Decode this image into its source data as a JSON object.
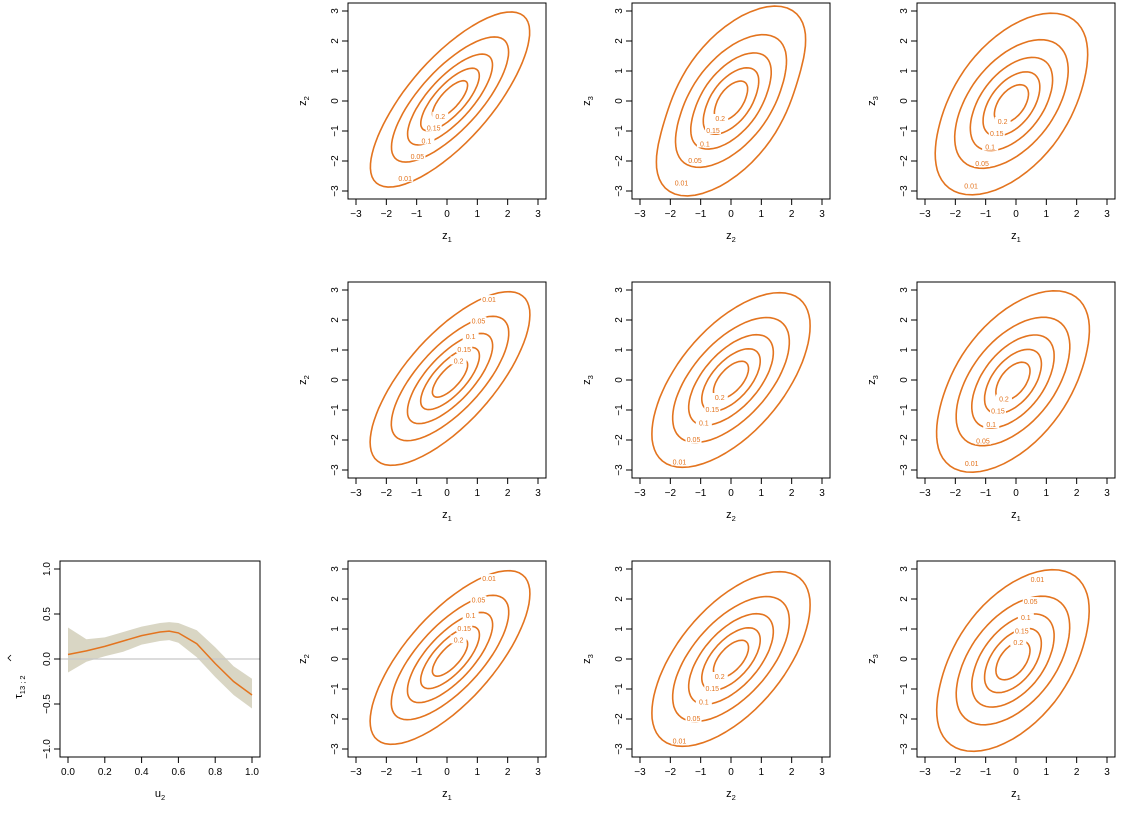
{
  "colors": {
    "contour": "#E3741F",
    "tau_line": "#E3741F",
    "tau_band": "#D9D6C4",
    "zero_line": "#C8C8C8"
  },
  "chart_data": [
    {
      "type": "line",
      "id": "tau",
      "xlabel": "u",
      "xlabel_sub": "2",
      "ylabel": "τ",
      "ylabel_sub": "13 ; 2",
      "xlim": [
        0,
        1
      ],
      "ylim": [
        -1,
        1
      ],
      "x_ticks": [
        "0.0",
        "0.2",
        "0.4",
        "0.6",
        "0.8",
        "1.0"
      ],
      "y_ticks": [
        "−1.0",
        "−0.5",
        "0.0",
        "0.5",
        "1.0"
      ],
      "x": [
        0,
        0.1,
        0.2,
        0.3,
        0.4,
        0.5,
        0.55,
        0.6,
        0.7,
        0.8,
        0.9,
        1.0
      ],
      "estimate": [
        0.05,
        0.09,
        0.14,
        0.2,
        0.26,
        0.3,
        0.31,
        0.29,
        0.17,
        -0.05,
        -0.25,
        -0.4
      ],
      "lower": [
        -0.15,
        -0.03,
        0.03,
        0.08,
        0.16,
        0.2,
        0.21,
        0.18,
        0.02,
        -0.2,
        -0.4,
        -0.55
      ],
      "upper": [
        0.35,
        0.22,
        0.24,
        0.3,
        0.36,
        0.4,
        0.41,
        0.4,
        0.32,
        0.13,
        -0.08,
        -0.22
      ]
    },
    {
      "type": "contour",
      "id": "r1c1",
      "xlabel": "z",
      "xlabel_sub": "1",
      "ylabel": "z",
      "ylabel_sub": "2",
      "xlim": [
        -3,
        3
      ],
      "ylim": [
        -3,
        3
      ],
      "ticks": [
        "−3",
        "−2",
        "−1",
        "0",
        "1",
        "2",
        "3"
      ],
      "rho": 0.75,
      "cx": 0.1,
      "cy": 0.05,
      "skew": 0.06,
      "label_angle": -2.5,
      "levels": [
        0.01,
        0.05,
        0.1,
        0.15,
        0.2
      ]
    },
    {
      "type": "contour",
      "id": "r1c2",
      "xlabel": "z",
      "xlabel_sub": "2",
      "ylabel": "z",
      "ylabel_sub": "3",
      "xlim": [
        -3,
        3
      ],
      "ylim": [
        -3,
        3
      ],
      "ticks": [
        "−3",
        "−2",
        "−1",
        "0",
        "1",
        "2",
        "3"
      ],
      "rho": 0.55,
      "cx": 0.0,
      "cy": 0.0,
      "skew": 0.12,
      "label_angle": -2.7,
      "levels": [
        0.01,
        0.05,
        0.1,
        0.15,
        0.2
      ]
    },
    {
      "type": "contour",
      "id": "r1c3",
      "xlabel": "z",
      "xlabel_sub": "1",
      "ylabel": "z",
      "ylabel_sub": "3",
      "xlim": [
        -3,
        3
      ],
      "ylim": [
        -3,
        3
      ],
      "ticks": [
        "−3",
        "−2",
        "−1",
        "0",
        "1",
        "2",
        "3"
      ],
      "rho": 0.5,
      "cx": -0.15,
      "cy": -0.1,
      "skew": 0.08,
      "label_angle": -2.6,
      "levels": [
        0.01,
        0.05,
        0.1,
        0.15,
        0.2
      ]
    },
    {
      "type": "contour",
      "id": "r2c1",
      "xlabel": "z",
      "xlabel_sub": "1",
      "ylabel": "z",
      "ylabel_sub": "2",
      "xlim": [
        -3,
        3
      ],
      "ylim": [
        -3,
        3
      ],
      "ticks": [
        "−3",
        "−2",
        "−1",
        "0",
        "1",
        "2",
        "3"
      ],
      "rho": 0.72,
      "cx": 0.1,
      "cy": 0.05,
      "skew": 0.05,
      "label_angle": 0.7,
      "levels": [
        0.01,
        0.05,
        0.1,
        0.15,
        0.2
      ]
    },
    {
      "type": "contour",
      "id": "r2c2",
      "xlabel": "z",
      "xlabel_sub": "2",
      "ylabel": "z",
      "ylabel_sub": "3",
      "xlim": [
        -3,
        3
      ],
      "ylim": [
        -3,
        3
      ],
      "ticks": [
        "−3",
        "−2",
        "−1",
        "0",
        "1",
        "2",
        "3"
      ],
      "rho": 0.6,
      "cx": 0.0,
      "cy": 0.0,
      "skew": 0.05,
      "label_angle": -2.7,
      "levels": [
        0.01,
        0.05,
        0.1,
        0.15,
        0.2
      ]
    },
    {
      "type": "contour",
      "id": "r2c3",
      "xlabel": "z",
      "xlabel_sub": "1",
      "ylabel": "z",
      "ylabel_sub": "3",
      "xlim": [
        -3,
        3
      ],
      "ylim": [
        -3,
        3
      ],
      "ticks": [
        "−3",
        "−2",
        "−1",
        "0",
        "1",
        "2",
        "3"
      ],
      "rho": 0.52,
      "cx": -0.1,
      "cy": -0.05,
      "skew": 0.08,
      "label_angle": -2.6,
      "levels": [
        0.01,
        0.05,
        0.1,
        0.15,
        0.2
      ]
    },
    {
      "type": "contour",
      "id": "r3c1",
      "xlabel": "z",
      "xlabel_sub": "1",
      "ylabel": "z",
      "ylabel_sub": "2",
      "xlim": [
        -3,
        3
      ],
      "ylim": [
        -3,
        3
      ],
      "ticks": [
        "−3",
        "−2",
        "−1",
        "0",
        "1",
        "2",
        "3"
      ],
      "rho": 0.72,
      "cx": 0.1,
      "cy": 0.05,
      "skew": 0.05,
      "label_angle": 0.7,
      "levels": [
        0.01,
        0.05,
        0.1,
        0.15,
        0.2
      ]
    },
    {
      "type": "contour",
      "id": "r3c2",
      "xlabel": "z",
      "xlabel_sub": "2",
      "ylabel": "z",
      "ylabel_sub": "3",
      "xlim": [
        -3,
        3
      ],
      "ylim": [
        -3,
        3
      ],
      "ticks": [
        "−3",
        "−2",
        "−1",
        "0",
        "1",
        "2",
        "3"
      ],
      "rho": 0.6,
      "cx": 0.0,
      "cy": 0.0,
      "skew": 0.05,
      "label_angle": -2.7,
      "levels": [
        0.01,
        0.05,
        0.1,
        0.15,
        0.2
      ]
    },
    {
      "type": "contour",
      "id": "r3c3",
      "xlabel": "z",
      "xlabel_sub": "1",
      "ylabel": "z",
      "ylabel_sub": "3",
      "xlim": [
        -3,
        3
      ],
      "ylim": [
        -3,
        3
      ],
      "ticks": [
        "−3",
        "−2",
        "−1",
        "0",
        "1",
        "2",
        "3"
      ],
      "rho": 0.5,
      "cx": -0.1,
      "cy": -0.05,
      "skew": 0.08,
      "label_angle": 0.75,
      "levels": [
        0.01,
        0.05,
        0.1,
        0.15,
        0.2
      ]
    }
  ]
}
